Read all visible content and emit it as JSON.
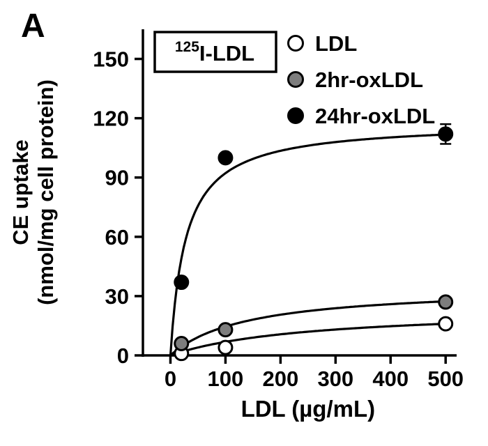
{
  "panel_label": "A",
  "chart_data": {
    "type": "scatter",
    "title_box": {
      "superscript": "125",
      "main": "I-LDL"
    },
    "xlabel": "LDL (µg/mL)",
    "ylabel_line1": "CE uptake",
    "ylabel_line2": "(nmol/mg cell protein)",
    "xlim": [
      -50,
      520
    ],
    "ylim": [
      0,
      165
    ],
    "xticks": [
      0,
      100,
      200,
      300,
      400,
      500
    ],
    "yticks": [
      0,
      30,
      60,
      90,
      120,
      150
    ],
    "grid": false,
    "legend_position": "top-right-inside",
    "colors": {
      "axis": "#000000",
      "curve": "#000000",
      "ldl_fill": "#ffffff",
      "ox2hr_fill": "#7d7d7d",
      "ox24hr_fill": "#000000"
    },
    "series": [
      {
        "name": "LDL",
        "marker": "open-circle",
        "marker_fill": "#ffffff",
        "points": [
          {
            "x": 20,
            "y": 1
          },
          {
            "x": 100,
            "y": 4
          },
          {
            "x": 500,
            "y": 16
          }
        ],
        "fit": {
          "vmax": 24,
          "km": 250
        }
      },
      {
        "name": "2hr-oxLDL",
        "marker": "gray-circle",
        "marker_fill": "#7d7d7d",
        "points": [
          {
            "x": 20,
            "y": 6
          },
          {
            "x": 100,
            "y": 13
          },
          {
            "x": 500,
            "y": 27
          }
        ],
        "fit": {
          "vmax": 35,
          "km": 140
        }
      },
      {
        "name": "24hr-oxLDL",
        "marker": "filled-circle",
        "marker_fill": "#000000",
        "points": [
          {
            "x": 20,
            "y": 37
          },
          {
            "x": 100,
            "y": 100
          },
          {
            "x": 500,
            "y": 112,
            "err": 5
          }
        ],
        "fit": {
          "vmax": 118,
          "km": 28
        }
      }
    ],
    "legend": [
      "LDL",
      "2hr-oxLDL",
      "24hr-oxLDL"
    ]
  }
}
